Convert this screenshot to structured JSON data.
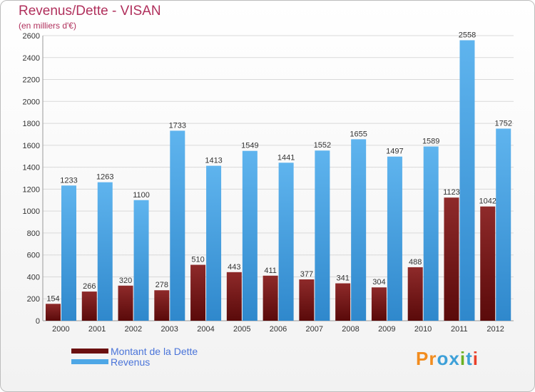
{
  "title": "Revenus/Dette - VISAN",
  "subtitle": "(en milliers d'€)",
  "colors": {
    "dette": "#7a1c1c",
    "revenus": "#4ea7e6",
    "title": "#b0305c",
    "legend_text": "#4a74d9"
  },
  "legend": [
    {
      "label": "Montant de la Dette",
      "color": "#6a0f0f"
    },
    {
      "label": "Revenus",
      "color": "#4ea7e6"
    }
  ],
  "logo": {
    "text": "Proxiti",
    "letter_colors": [
      "#f28c1e",
      "#f28c1e",
      "#3da0d8",
      "#3da0d8",
      "#6ab023",
      "#3da0d8",
      "#e8402a"
    ]
  },
  "chart_data": {
    "type": "bar",
    "categories": [
      "2000",
      "2001",
      "2002",
      "2003",
      "2004",
      "2005",
      "2006",
      "2007",
      "2008",
      "2009",
      "2010",
      "2011",
      "2012"
    ],
    "series": [
      {
        "name": "Montant de la Dette",
        "values": [
          154,
          266,
          320,
          278,
          510,
          443,
          411,
          377,
          341,
          304,
          488,
          1123,
          1042
        ]
      },
      {
        "name": "Revenus",
        "values": [
          1233,
          1263,
          1100,
          1733,
          1413,
          1549,
          1441,
          1552,
          1655,
          1497,
          1589,
          2558,
          1752
        ]
      }
    ],
    "ylim": [
      0,
      2600
    ],
    "yticks": [
      0,
      200,
      400,
      600,
      800,
      1000,
      1200,
      1400,
      1600,
      1800,
      2000,
      2200,
      2400,
      2600
    ],
    "grid": true
  }
}
